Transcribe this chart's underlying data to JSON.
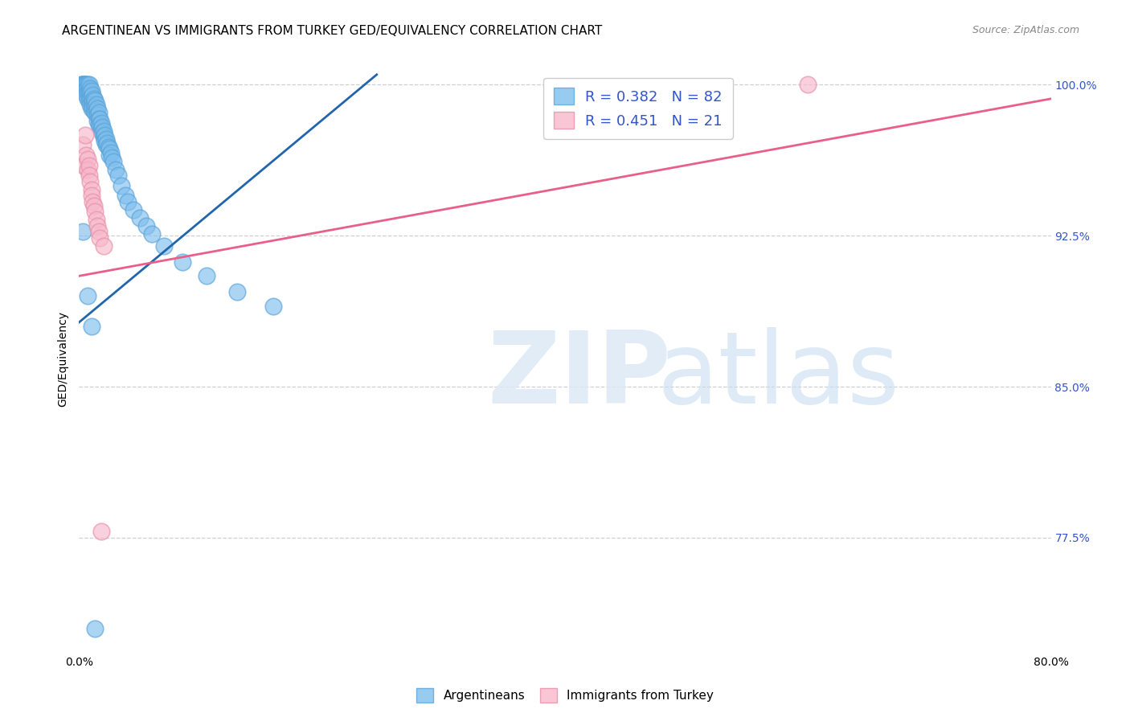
{
  "title": "ARGENTINEAN VS IMMIGRANTS FROM TURKEY GED/EQUIVALENCY CORRELATION CHART",
  "source": "Source: ZipAtlas.com",
  "xlabel": "",
  "ylabel": "GED/Equivalency",
  "xlim": [
    0.0,
    0.8
  ],
  "ylim": [
    0.718,
    1.01
  ],
  "xticks": [
    0.0,
    0.1,
    0.2,
    0.3,
    0.4,
    0.5,
    0.6,
    0.7,
    0.8
  ],
  "xticklabels": [
    "0.0%",
    "",
    "",
    "",
    "",
    "",
    "",
    "",
    "80.0%"
  ],
  "yticks": [
    0.775,
    0.85,
    0.925,
    1.0
  ],
  "yticklabels": [
    "77.5%",
    "85.0%",
    "92.5%",
    "100.0%"
  ],
  "blue_color": "#7fbfed",
  "blue_edge_color": "#5ba3d9",
  "pink_color": "#f7b8cb",
  "pink_edge_color": "#e88fa8",
  "blue_line_color": "#2166ac",
  "pink_line_color": "#e8608a",
  "legend_blue_label": "R = 0.382   N = 82",
  "legend_pink_label": "R = 0.451   N = 21",
  "legend_text_color": "#3355cc",
  "grid_color": "#d0d0d0",
  "title_fontsize": 11,
  "axis_label_fontsize": 10,
  "tick_fontsize": 10,
  "right_tick_color": "#3355cc",
  "blue_line_x0": 0.0,
  "blue_line_y0": 0.882,
  "blue_line_x1": 0.245,
  "blue_line_y1": 1.005,
  "pink_line_x0": 0.0,
  "pink_line_y0": 0.905,
  "pink_line_x1": 0.8,
  "pink_line_y1": 0.993,
  "arg_x": [
    0.002,
    0.003,
    0.003,
    0.003,
    0.004,
    0.004,
    0.005,
    0.005,
    0.005,
    0.006,
    0.006,
    0.006,
    0.007,
    0.007,
    0.007,
    0.007,
    0.008,
    0.008,
    0.008,
    0.008,
    0.009,
    0.009,
    0.009,
    0.009,
    0.01,
    0.01,
    0.01,
    0.01,
    0.011,
    0.011,
    0.011,
    0.012,
    0.012,
    0.012,
    0.013,
    0.013,
    0.013,
    0.014,
    0.014,
    0.015,
    0.015,
    0.015,
    0.016,
    0.016,
    0.016,
    0.017,
    0.017,
    0.018,
    0.018,
    0.019,
    0.019,
    0.02,
    0.02,
    0.021,
    0.021,
    0.022,
    0.022,
    0.023,
    0.024,
    0.025,
    0.025,
    0.026,
    0.027,
    0.028,
    0.03,
    0.032,
    0.035,
    0.038,
    0.04,
    0.045,
    0.05,
    0.055,
    0.06,
    0.07,
    0.085,
    0.105,
    0.13,
    0.16,
    0.003,
    0.007,
    0.01,
    0.013
  ],
  "arg_y": [
    1.0,
    1.0,
    1.0,
    0.999,
    1.0,
    0.998,
    1.0,
    1.0,
    0.997,
    1.0,
    0.998,
    0.995,
    1.0,
    0.998,
    0.996,
    0.993,
    1.0,
    0.997,
    0.995,
    0.992,
    0.998,
    0.996,
    0.993,
    0.99,
    0.997,
    0.994,
    0.991,
    0.988,
    0.995,
    0.992,
    0.989,
    0.993,
    0.99,
    0.987,
    0.992,
    0.989,
    0.986,
    0.99,
    0.987,
    0.988,
    0.985,
    0.982,
    0.986,
    0.983,
    0.98,
    0.983,
    0.98,
    0.981,
    0.978,
    0.979,
    0.976,
    0.977,
    0.974,
    0.975,
    0.972,
    0.973,
    0.97,
    0.971,
    0.969,
    0.968,
    0.965,
    0.966,
    0.964,
    0.962,
    0.958,
    0.955,
    0.95,
    0.945,
    0.942,
    0.938,
    0.934,
    0.93,
    0.926,
    0.92,
    0.912,
    0.905,
    0.897,
    0.89,
    0.927,
    0.895,
    0.88,
    0.73
  ],
  "turkey_x": [
    0.003,
    0.004,
    0.005,
    0.006,
    0.007,
    0.007,
    0.008,
    0.008,
    0.009,
    0.01,
    0.01,
    0.011,
    0.012,
    0.013,
    0.014,
    0.015,
    0.016,
    0.017,
    0.018,
    0.02,
    0.6
  ],
  "turkey_y": [
    0.97,
    0.96,
    0.975,
    0.965,
    0.963,
    0.958,
    0.96,
    0.955,
    0.952,
    0.948,
    0.945,
    0.942,
    0.94,
    0.937,
    0.933,
    0.93,
    0.927,
    0.924,
    0.778,
    0.92,
    1.0
  ]
}
